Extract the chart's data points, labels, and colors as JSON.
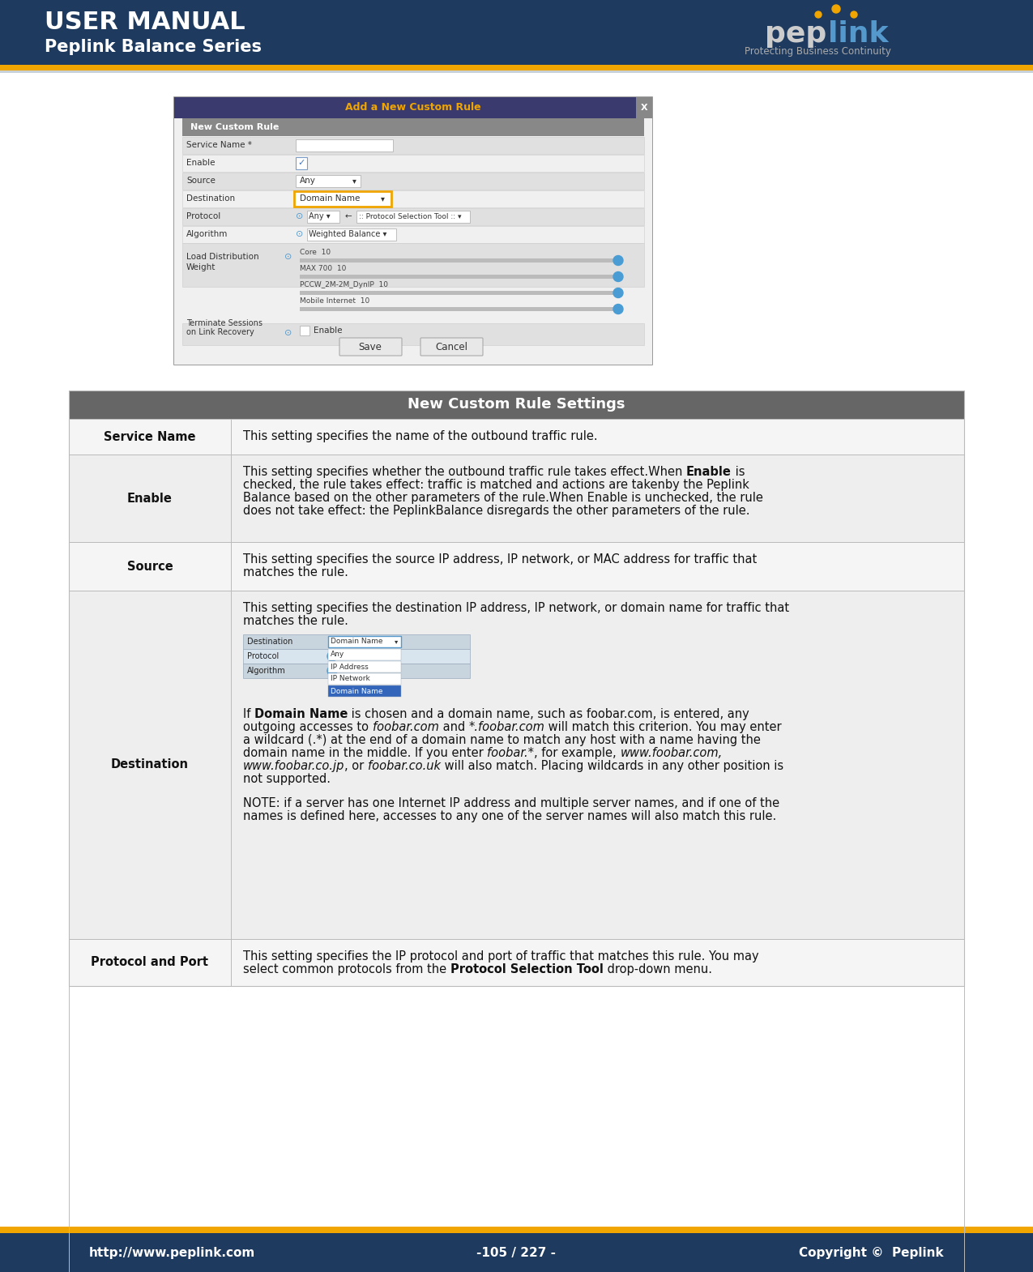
{
  "header_bg_color": "#1e3a5f",
  "header_title": "USER MANUAL",
  "header_subtitle": "Peplink Balance Series",
  "header_text_color": "#ffffff",
  "accent_color": "#f0a500",
  "footer_bg_color": "#1e3a5f",
  "footer_text_color": "#ffffff",
  "footer_left": "http://www.peplink.com",
  "footer_center": "-105 / 227 -",
  "footer_right": "Copyright ©  Peplink",
  "page_bg": "#ffffff",
  "table_header_bg": "#666666",
  "table_header_text": "#ffffff",
  "table_header_label": "New Custom Rule Settings",
  "row_bg_odd": "#f0f0f0",
  "row_bg_even": "#ffffff",
  "table_border_color": "#bbbbbb"
}
